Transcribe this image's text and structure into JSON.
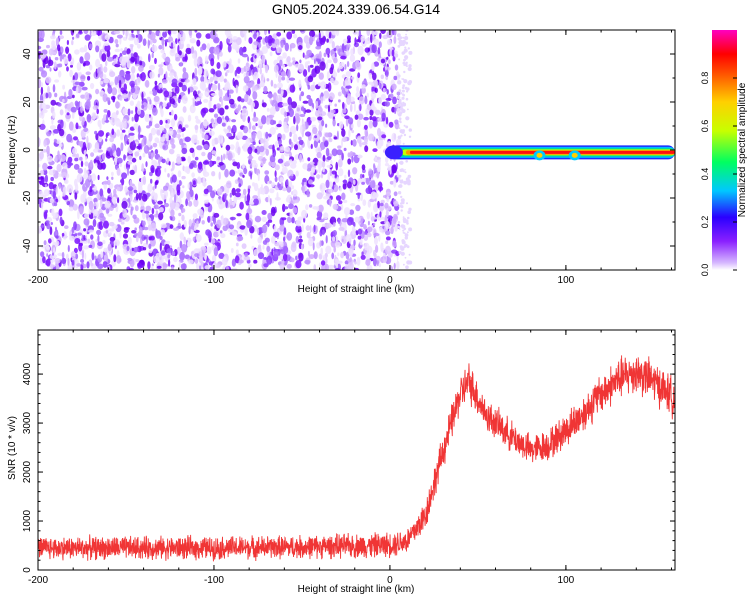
{
  "figure": {
    "title": "GN05.2024.339.06.54.G14"
  },
  "chart_data": [
    {
      "type": "heatmap",
      "title": "GN05.2024.339.06.54.G14",
      "xlabel": "Height of straight line (km)",
      "ylabel": "Frequency (Hz)",
      "xlim": [
        -200,
        162
      ],
      "ylim": [
        -50,
        50
      ],
      "x_ticks": [
        -200,
        -100,
        0,
        100
      ],
      "y_ticks": [
        -40,
        -20,
        0,
        20,
        40
      ],
      "noise_region_x": [
        -200,
        5
      ],
      "signal_band": {
        "frequency_hz": -1,
        "x_range": [
          0,
          162
        ],
        "peak_value": 0.95,
        "dips_x": [
          85,
          105
        ]
      },
      "colorbar": {
        "label": "Normalized spectral amplitude",
        "min": 0,
        "max": 1,
        "ticks": [
          0,
          0.2,
          0.4,
          0.6,
          0.8
        ],
        "colors": [
          "#ffffff",
          "#b070ff",
          "#7a00ff",
          "#0000ff",
          "#00c8ff",
          "#00ff60",
          "#ffff00",
          "#ff9000",
          "#ff0000",
          "#ff00ff"
        ]
      },
      "grid": false
    },
    {
      "type": "line",
      "xlabel": "Height of straight line (km)",
      "ylabel": "SNR (10 * v/v)",
      "xlim": [
        -200,
        162
      ],
      "ylim": [
        0,
        4900
      ],
      "x_ticks": [
        -200,
        -100,
        0,
        100
      ],
      "y_ticks": [
        0,
        1000,
        2000,
        3000,
        4000
      ],
      "color": "#f03535",
      "x": [
        -200,
        -150,
        -100,
        -50,
        -10,
        0,
        10,
        20,
        30,
        40,
        45,
        55,
        70,
        80,
        90,
        100,
        110,
        120,
        130,
        140,
        150,
        162
      ],
      "values": [
        450,
        450,
        450,
        470,
        500,
        520,
        600,
        1100,
        2400,
        3600,
        3850,
        3150,
        2700,
        2450,
        2550,
        2850,
        3200,
        3600,
        3900,
        4050,
        3850,
        3500
      ],
      "noise_amplitude": [
        280,
        280,
        280,
        280,
        300,
        300,
        330,
        380,
        420,
        450,
        480,
        400,
        380,
        360,
        380,
        420,
        450,
        480,
        500,
        520,
        500,
        480
      ],
      "grid": false
    }
  ]
}
